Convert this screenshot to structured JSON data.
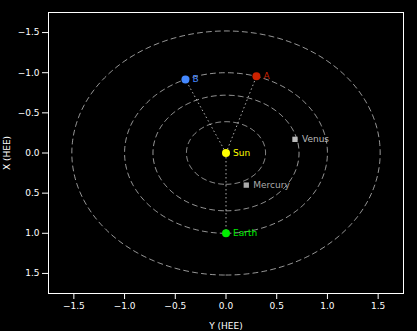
{
  "chart_data": {
    "type": "scatter",
    "xlabel": "Y (HEE)",
    "ylabel": "X (HEE)",
    "xlim": [
      -1.75,
      1.75
    ],
    "ylim": [
      1.75,
      -1.75
    ],
    "xticks": [
      {
        "value": -1.5,
        "label": "−1.5"
      },
      {
        "value": -1.0,
        "label": "−1.0"
      },
      {
        "value": -0.5,
        "label": "−0.5"
      },
      {
        "value": 0.0,
        "label": "0.0"
      },
      {
        "value": 0.5,
        "label": "0.5"
      },
      {
        "value": 1.0,
        "label": "1.0"
      },
      {
        "value": 1.5,
        "label": "1.5"
      }
    ],
    "yticks": [
      {
        "value": -1.5,
        "label": "−1.5"
      },
      {
        "value": -1.0,
        "label": "−1.0"
      },
      {
        "value": -0.5,
        "label": "−0.5"
      },
      {
        "value": 0.0,
        "label": "0.0"
      },
      {
        "value": 0.5,
        "label": "0.5"
      },
      {
        "value": 1.0,
        "label": "1.0"
      },
      {
        "value": 1.5,
        "label": "1.5"
      }
    ],
    "series": [
      {
        "name": "Sun",
        "color": "#ffff00",
        "marker": "circle",
        "x": [
          0.0
        ],
        "y": [
          0.0
        ]
      },
      {
        "name": "Earth",
        "color": "#00ee00",
        "marker": "circle",
        "x": [
          0.0
        ],
        "y": [
          1.0
        ]
      },
      {
        "name": "Mercury",
        "color": "#aaaaaa",
        "marker": "square",
        "x": [
          0.2
        ],
        "y": [
          0.4
        ]
      },
      {
        "name": "Venus",
        "color": "#bbbbbb",
        "marker": "square",
        "x": [
          0.68
        ],
        "y": [
          -0.17
        ]
      },
      {
        "name": "A",
        "color": "#cc2200",
        "marker": "circle",
        "x": [
          0.3
        ],
        "y": [
          -0.955
        ]
      },
      {
        "name": "B",
        "color": "#4488ff",
        "marker": "circle",
        "x": [
          -0.4
        ],
        "y": [
          -0.915
        ]
      }
    ],
    "orbits": {
      "line_style": "dashed",
      "color": "#ffffff",
      "radii": [
        0.39,
        0.72,
        1.0,
        1.52
      ]
    },
    "links": {
      "line_style": "dotted",
      "color": "#ffffff",
      "from": "Sun",
      "to": [
        "A",
        "B",
        "Earth"
      ]
    }
  }
}
